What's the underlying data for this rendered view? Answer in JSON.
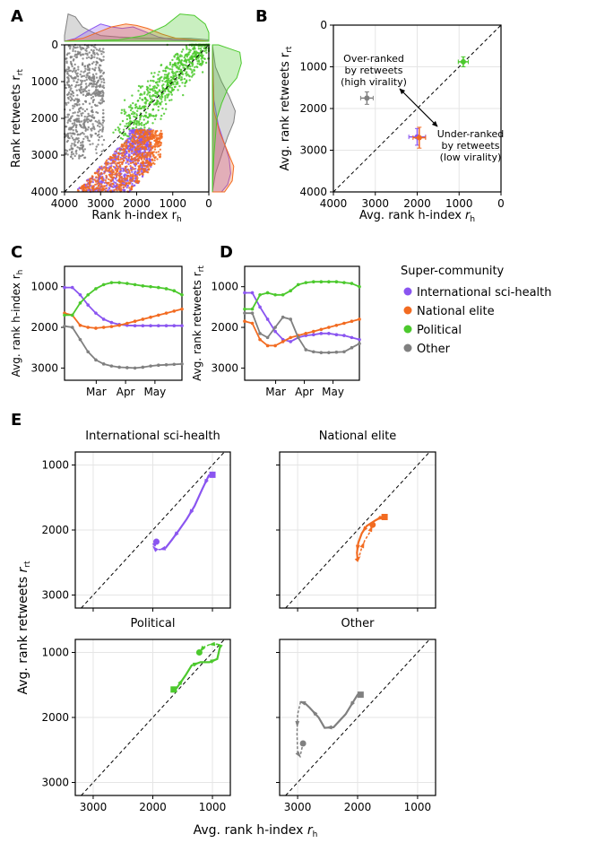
{
  "panel_labels": {
    "a": "A",
    "b": "B",
    "c": "C",
    "d": "D",
    "e": "E"
  },
  "colors": {
    "sci": "#8a55f0",
    "elite": "#f26b21",
    "pol": "#4cc92d",
    "other": "#808080",
    "axis": "#000000",
    "grid": "#e5e5e5"
  },
  "legend": {
    "title": "Super-community",
    "items": [
      "International sci-health",
      "National elite",
      "Political",
      "Other"
    ]
  },
  "chart_data": [
    {
      "id": "A",
      "type": "scatter",
      "xlabel": "Rank h-index r",
      "xlabel_sub": "h",
      "ylabel": "Rank retweets r",
      "ylabel_sub": "rt",
      "xlim": [
        4000,
        0
      ],
      "ylim": [
        0,
        4000
      ],
      "xticks": [
        "4000",
        "3000",
        "2000",
        "1000",
        "0"
      ],
      "yticks": [
        "0",
        "1000",
        "2000",
        "3000",
        "4000"
      ],
      "clusters": [
        {
          "name": "Other",
          "n": 650,
          "x_range": [
            2900,
            4000
          ],
          "y_range": [
            0,
            3100
          ],
          "diag_bias": 0
        },
        {
          "name": "Political",
          "n": 700,
          "x_range": [
            0,
            2200
          ],
          "y_range": [
            0,
            2400
          ],
          "diag_bias": 1
        },
        {
          "name": "International sci-health",
          "n": 750,
          "x_range": [
            1600,
            3600
          ],
          "y_range": [
            1900,
            4000
          ],
          "diag_bias": 1
        },
        {
          "name": "National elite",
          "n": 700,
          "x_range": [
            1300,
            3500
          ],
          "y_range": [
            2000,
            4000
          ],
          "diag_bias": 1
        }
      ]
    },
    {
      "id": "B",
      "type": "scatter",
      "xlabel": "Avg. rank h-index r",
      "xlabel_sub": "h",
      "ylabel": "Avg. rank retweets r",
      "ylabel_sub": "rt",
      "xlim": [
        4000,
        0
      ],
      "ylim": [
        0,
        4000
      ],
      "xticks": [
        "4000",
        "3000",
        "2000",
        "1000",
        "0"
      ],
      "yticks": [
        "0",
        "1000",
        "2000",
        "3000",
        "4000"
      ],
      "points": [
        {
          "name": "Other",
          "x": 3200,
          "y": 1750,
          "xerr": 150,
          "yerr": 150
        },
        {
          "name": "International sci-health",
          "x": 2000,
          "y": 2680,
          "xerr": 200,
          "yerr": 200
        },
        {
          "name": "National elite",
          "x": 1950,
          "y": 2700,
          "xerr": 150,
          "yerr": 250
        },
        {
          "name": "Political",
          "x": 900,
          "y": 880,
          "xerr": 120,
          "yerr": 120
        }
      ],
      "annotation_over": [
        "Over-ranked",
        "by retweets",
        "(high virality)"
      ],
      "annotation_under": [
        "Under-ranked",
        "by retweets",
        "(low virality)"
      ]
    },
    {
      "id": "C",
      "type": "line",
      "ylabel": "Avg. rank h-index r",
      "ylabel_sub": "h",
      "ylim": [
        3300,
        500
      ],
      "yticks": [
        "1000",
        "2000",
        "3000"
      ],
      "xticks": [
        "Mar",
        "Apr",
        "May"
      ],
      "series": [
        {
          "name": "International sci-health",
          "values": [
            1020,
            1020,
            1200,
            1450,
            1650,
            1800,
            1880,
            1930,
            1950,
            1960,
            1960,
            1960,
            1960,
            1960,
            1960,
            1960
          ]
        },
        {
          "name": "National elite",
          "values": [
            1650,
            1700,
            1950,
            2000,
            2020,
            2000,
            1980,
            1950,
            1900,
            1850,
            1800,
            1750,
            1700,
            1650,
            1600,
            1550
          ]
        },
        {
          "name": "Political",
          "values": [
            1700,
            1700,
            1400,
            1200,
            1050,
            950,
            900,
            900,
            920,
            950,
            980,
            1000,
            1020,
            1050,
            1100,
            1200
          ]
        },
        {
          "name": "Other",
          "values": [
            1970,
            2000,
            2300,
            2600,
            2800,
            2900,
            2950,
            2980,
            2990,
            3000,
            2980,
            2950,
            2930,
            2920,
            2910,
            2900
          ]
        }
      ]
    },
    {
      "id": "D",
      "type": "line",
      "ylabel": "Avg. rank retweets r",
      "ylabel_sub": "rt",
      "ylim": [
        3300,
        500
      ],
      "yticks": [
        "1000",
        "2000",
        "3000"
      ],
      "xticks": [
        "Mar",
        "Apr",
        "May"
      ],
      "series": [
        {
          "name": "International sci-health",
          "values": [
            1150,
            1150,
            1500,
            1800,
            2100,
            2300,
            2350,
            2250,
            2200,
            2180,
            2150,
            2150,
            2180,
            2200,
            2250,
            2300
          ]
        },
        {
          "name": "National elite",
          "values": [
            1850,
            1900,
            2300,
            2450,
            2450,
            2350,
            2250,
            2200,
            2150,
            2100,
            2050,
            2000,
            1950,
            1900,
            1850,
            1800
          ]
        },
        {
          "name": "Political",
          "values": [
            1550,
            1550,
            1200,
            1150,
            1200,
            1200,
            1100,
            950,
            900,
            880,
            880,
            880,
            880,
            900,
            920,
            1000
          ]
        },
        {
          "name": "Other",
          "values": [
            1650,
            1650,
            2150,
            2250,
            2000,
            1750,
            1800,
            2250,
            2550,
            2600,
            2620,
            2620,
            2610,
            2600,
            2500,
            2400
          ]
        }
      ]
    },
    {
      "id": "E",
      "type": "line",
      "xlabel": "Avg. rank h-index r",
      "xlabel_sub": "h",
      "ylabel": "Avg. rank retweets r",
      "ylabel_sub": "rt",
      "xlim": [
        3300,
        700
      ],
      "ylim": [
        800,
        3200
      ],
      "xticks": [
        "3000",
        "2000",
        "1000"
      ],
      "yticks": [
        "1000",
        "2000",
        "3000"
      ],
      "subplots": [
        {
          "title": "International sci-health",
          "x": [
            1000,
            1060,
            1170,
            1300,
            1430,
            1560,
            1680,
            1790,
            1880,
            1950,
            1980,
            1970,
            1940
          ],
          "y": [
            1150,
            1160,
            1370,
            1630,
            1830,
            2000,
            2150,
            2280,
            2300,
            2300,
            2270,
            2220,
            2180
          ]
        },
        {
          "title": "National elite",
          "x": [
            1550,
            1600,
            1700,
            1850,
            1930,
            1990,
            2010,
            2000,
            1980,
            1940,
            1880,
            1800,
            1750
          ],
          "y": [
            1800,
            1800,
            1850,
            1940,
            2050,
            2200,
            2350,
            2450,
            2430,
            2300,
            2160,
            2040,
            1920
          ]
        },
        {
          "title": "Political",
          "x": [
            1650,
            1600,
            1450,
            1350,
            1200,
            1050,
            920,
            870,
            900,
            960,
            1050,
            1150,
            1200,
            1220
          ],
          "y": [
            1570,
            1550,
            1350,
            1200,
            1150,
            1150,
            1100,
            900,
            880,
            870,
            880,
            920,
            980,
            1000
          ]
        },
        {
          "title": "Other",
          "x": [
            1950,
            2000,
            2200,
            2400,
            2550,
            2650,
            2800,
            2880,
            2950,
            3000,
            3010,
            3000,
            2960,
            2910
          ],
          "y": [
            1650,
            1650,
            1950,
            2150,
            2160,
            2000,
            1850,
            1780,
            1760,
            1950,
            2250,
            2550,
            2600,
            2400
          ]
        }
      ]
    }
  ]
}
